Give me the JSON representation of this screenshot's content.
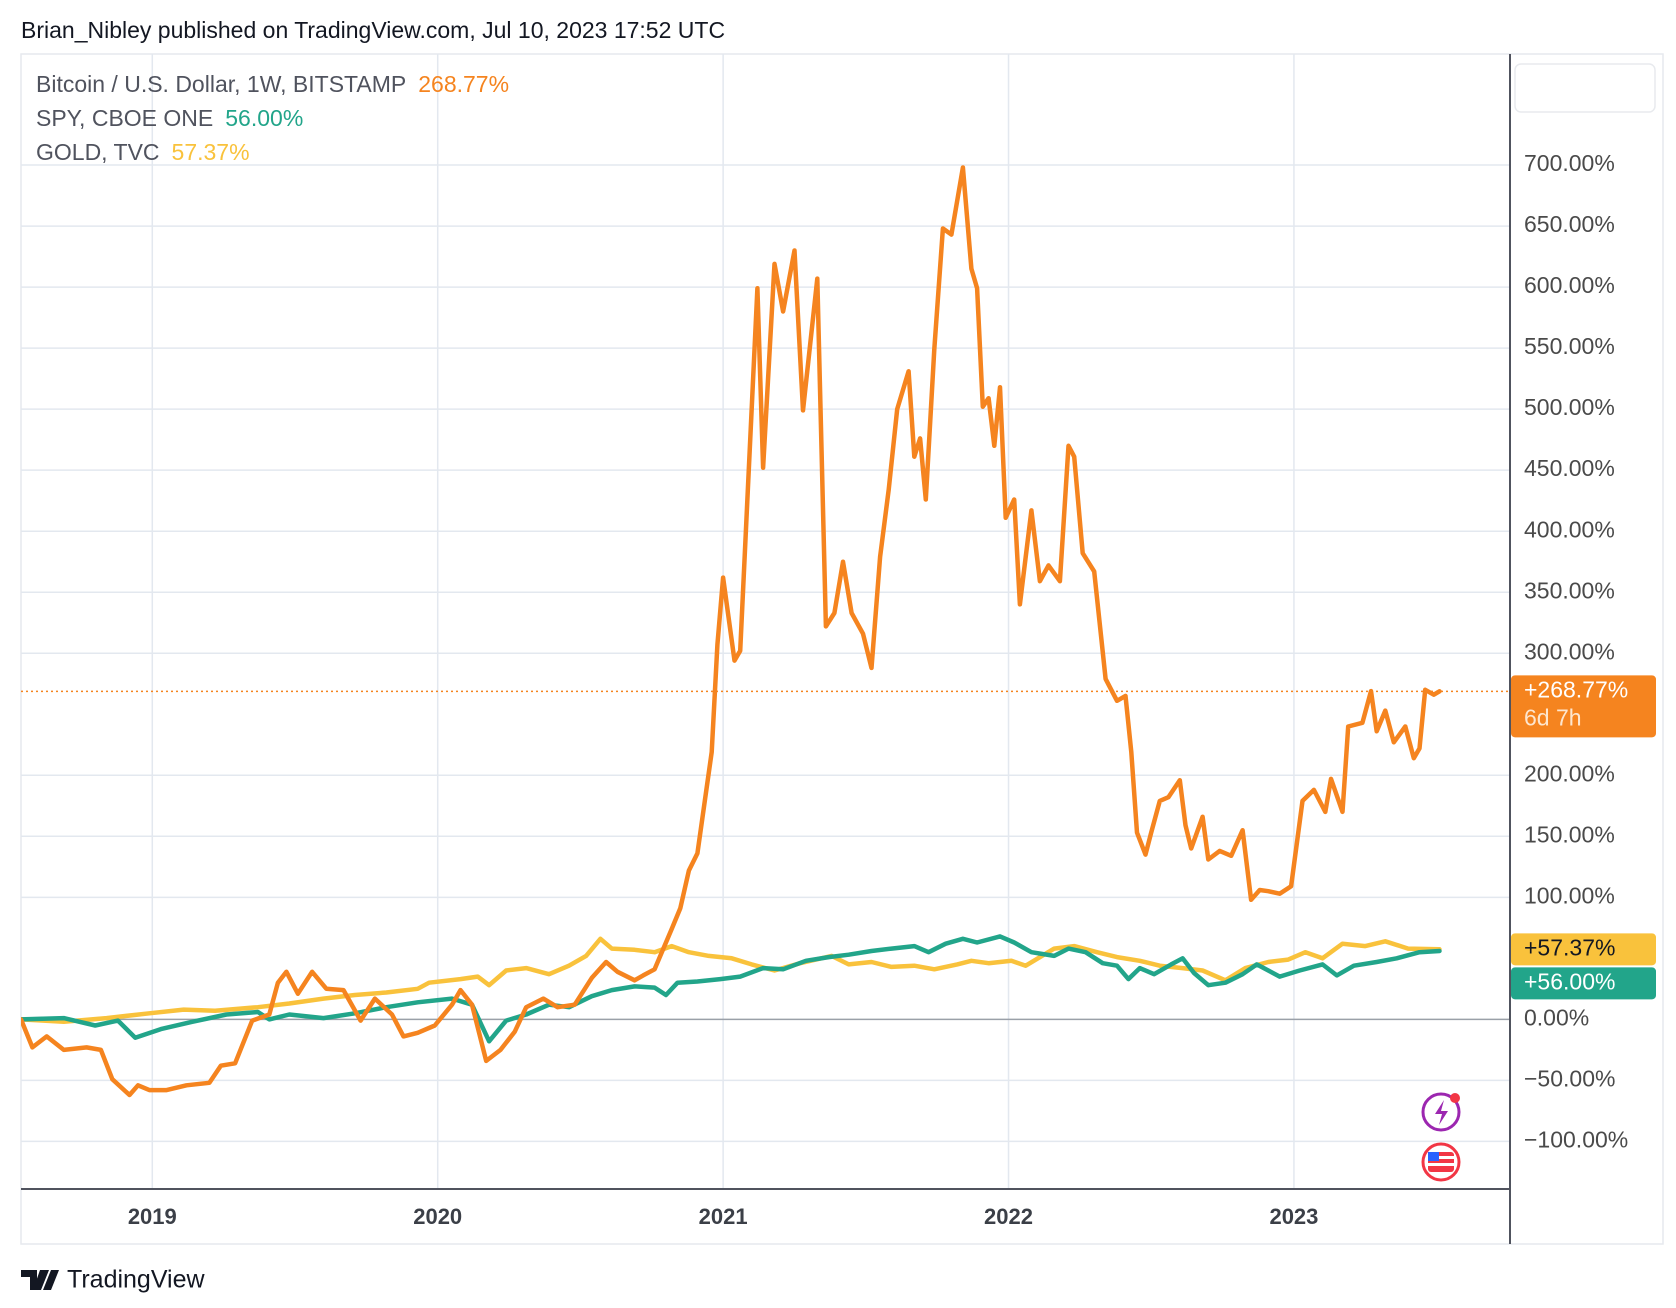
{
  "header": "Brian_Nibley published on TradingView.com, Jul 10, 2023 17:52 UTC",
  "footer": "TradingView",
  "chart_data": {
    "type": "line",
    "xlim": [
      2018.54,
      2023.757
    ],
    "xticks": [
      2019,
      2020,
      2021,
      2022,
      2023
    ],
    "ylim": [
      -139,
      791
    ],
    "yticks": [
      {
        "value": -100,
        "label": "−100.00%"
      },
      {
        "value": -50,
        "label": "−50.00%"
      },
      {
        "value": 0,
        "label": "0.00%"
      },
      {
        "value": 100,
        "label": "100.00%"
      },
      {
        "value": 150,
        "label": "150.00%"
      },
      {
        "value": 200,
        "label": "200.00%"
      },
      {
        "value": 300,
        "label": "300.00%"
      },
      {
        "value": 350,
        "label": "350.00%"
      },
      {
        "value": 400,
        "label": "400.00%"
      },
      {
        "value": 450,
        "label": "450.00%"
      },
      {
        "value": 500,
        "label": "500.00%"
      },
      {
        "value": 550,
        "label": "550.00%"
      },
      {
        "value": 600,
        "label": "600.00%"
      },
      {
        "value": 650,
        "label": "650.00%"
      },
      {
        "value": 700,
        "label": "700.00%"
      }
    ],
    "grid": true,
    "series": [
      {
        "name": "Bitcoin / U.S. Dollar, 1W, BITSTAMP",
        "color": "#f5841f",
        "legend_value": "268.77%",
        "axis_label": "+268.77%",
        "countdown": "6d 7h",
        "x": [
          2018.54,
          2018.58,
          2018.63,
          2018.69,
          2018.77,
          2018.82,
          2018.86,
          2018.92,
          2018.95,
          2018.99,
          2019.05,
          2019.12,
          2019.2,
          2019.24,
          2019.29,
          2019.35,
          2019.41,
          2019.44,
          2019.47,
          2019.51,
          2019.56,
          2019.61,
          2019.67,
          2019.73,
          2019.78,
          2019.84,
          2019.88,
          2019.93,
          2019.99,
          2020.05,
          2020.08,
          2020.12,
          2020.17,
          2020.22,
          2020.27,
          2020.31,
          2020.37,
          2020.42,
          2020.48,
          2020.54,
          2020.59,
          2020.63,
          2020.69,
          2020.72,
          2020.76,
          2020.82,
          2020.85,
          2020.88,
          2020.91,
          2020.94,
          2020.96,
          2020.98,
          2021.0,
          2021.04,
          2021.06,
          2021.12,
          2021.14,
          2021.18,
          2021.21,
          2021.25,
          2021.28,
          2021.33,
          2021.36,
          2021.39,
          2021.42,
          2021.45,
          2021.49,
          2021.52,
          2021.55,
          2021.58,
          2021.61,
          2021.65,
          2021.67,
          2021.69,
          2021.71,
          2021.74,
          2021.77,
          2021.8,
          2021.84,
          2021.87,
          2021.89,
          2021.91,
          2021.93,
          2021.95,
          2021.97,
          2021.99,
          2022.02,
          2022.04,
          2022.08,
          2022.11,
          2022.14,
          2022.18,
          2022.21,
          2022.23,
          2022.26,
          2022.3,
          2022.34,
          2022.38,
          2022.41,
          2022.43,
          2022.45,
          2022.48,
          2022.5,
          2022.53,
          2022.56,
          2022.6,
          2022.62,
          2022.64,
          2022.68,
          2022.7,
          2022.74,
          2022.78,
          2022.82,
          2022.85,
          2022.88,
          2022.91,
          2022.95,
          2022.99,
          2023.03,
          2023.07,
          2023.11,
          2023.13,
          2023.17,
          2023.19,
          2023.24,
          2023.27,
          2023.29,
          2023.32,
          2023.35,
          2023.39,
          2023.42,
          2023.44,
          2023.46,
          2023.49,
          2023.51
        ],
        "values": [
          0,
          -23,
          -14,
          -25,
          -23,
          -25,
          -49,
          -62,
          -54,
          -58,
          -58,
          -54,
          -52,
          -38,
          -36,
          -1,
          4,
          30,
          39,
          21,
          39,
          25,
          24,
          -1,
          17,
          4,
          -14,
          -11,
          -5,
          12,
          24,
          12,
          -34,
          -25,
          -10,
          10,
          17,
          10,
          12,
          34,
          47,
          39,
          32,
          36,
          41,
          74,
          91,
          122,
          136,
          186,
          219,
          307,
          362,
          294,
          302,
          599,
          452,
          619,
          580,
          630,
          499,
          607,
          322,
          333,
          375,
          333,
          316,
          288,
          379,
          434,
          500,
          531,
          461,
          476,
          426,
          549,
          648,
          643,
          698,
          615,
          599,
          502,
          509,
          470,
          518,
          411,
          426,
          340,
          417,
          359,
          372,
          359,
          470,
          461,
          382,
          367,
          279,
          261,
          265,
          219,
          153,
          135,
          153,
          179,
          182,
          196,
          159,
          140,
          166,
          131,
          138,
          134,
          155,
          98,
          106,
          105,
          103,
          109,
          179,
          188,
          170,
          197,
          170,
          240,
          243,
          269,
          236,
          253,
          227,
          240,
          214,
          222,
          270,
          266,
          268.77
        ]
      },
      {
        "name": "SPY, CBOE ONE",
        "color": "#22a58a",
        "legend_value": "56.00%",
        "axis_label": "+56.00%",
        "x": [
          2018.54,
          2018.69,
          2018.8,
          2018.88,
          2018.94,
          2019.03,
          2019.14,
          2019.26,
          2019.37,
          2019.41,
          2019.48,
          2019.6,
          2019.71,
          2019.82,
          2019.93,
          2020.05,
          2020.12,
          2020.18,
          2020.24,
          2020.31,
          2020.39,
          2020.46,
          2020.54,
          2020.61,
          2020.69,
          2020.76,
          2020.8,
          2020.84,
          2020.91,
          2020.99,
          2021.06,
          2021.14,
          2021.21,
          2021.29,
          2021.37,
          2021.44,
          2021.52,
          2021.59,
          2021.67,
          2021.72,
          2021.78,
          2021.84,
          2021.89,
          2021.97,
          2022.02,
          2022.08,
          2022.16,
          2022.21,
          2022.27,
          2022.33,
          2022.38,
          2022.42,
          2022.46,
          2022.51,
          2022.57,
          2022.61,
          2022.65,
          2022.7,
          2022.76,
          2022.82,
          2022.87,
          2022.95,
          2023.02,
          2023.1,
          2023.15,
          2023.21,
          2023.29,
          2023.36,
          2023.44,
          2023.51
        ],
        "values": [
          0,
          1,
          -5,
          -1,
          -15,
          -8,
          -2,
          4,
          6,
          0,
          4,
          1,
          5,
          10,
          14,
          17,
          12,
          -18,
          -1,
          4,
          12,
          10,
          19,
          24,
          27,
          26,
          20,
          30,
          31,
          33,
          35,
          42,
          41,
          48,
          51,
          53,
          56,
          58,
          60,
          55,
          62,
          66,
          63,
          68,
          63,
          55,
          52,
          58,
          55,
          46,
          44,
          33,
          42,
          37,
          45,
          50,
          38,
          28,
          30,
          37,
          45,
          35,
          40,
          45,
          36,
          44,
          47,
          50,
          55,
          56
        ]
      },
      {
        "name": "GOLD, TVC",
        "color": "#f9c23c",
        "legend_value": "57.37%",
        "axis_label": "+57.37%",
        "x": [
          2018.54,
          2018.69,
          2018.84,
          2018.99,
          2019.11,
          2019.22,
          2019.37,
          2019.48,
          2019.6,
          2019.71,
          2019.82,
          2019.93,
          2019.97,
          2020.08,
          2020.14,
          2020.18,
          2020.24,
          2020.31,
          2020.39,
          2020.46,
          2020.52,
          2020.57,
          2020.61,
          2020.69,
          2020.76,
          2020.82,
          2020.88,
          2020.95,
          2021.03,
          2021.1,
          2021.18,
          2021.27,
          2021.38,
          2021.44,
          2021.52,
          2021.59,
          2021.67,
          2021.74,
          2021.82,
          2021.87,
          2021.93,
          2022.01,
          2022.06,
          2022.16,
          2022.23,
          2022.31,
          2022.38,
          2022.46,
          2022.53,
          2022.61,
          2022.68,
          2022.76,
          2022.83,
          2022.91,
          2022.98,
          2023.04,
          2023.1,
          2023.17,
          2023.25,
          2023.32,
          2023.4,
          2023.51
        ],
        "values": [
          0,
          -2,
          1,
          5,
          8,
          7,
          10,
          13,
          17,
          20,
          22,
          25,
          30,
          33,
          35,
          28,
          40,
          42,
          37,
          44,
          52,
          66,
          58,
          57,
          55,
          60,
          55,
          52,
          50,
          45,
          40,
          46,
          52,
          45,
          47,
          43,
          44,
          41,
          45,
          48,
          46,
          48,
          44,
          58,
          60,
          55,
          51,
          48,
          44,
          42,
          40,
          32,
          42,
          47,
          49,
          55,
          50,
          62,
          60,
          64,
          58,
          57.37
        ]
      }
    ]
  }
}
